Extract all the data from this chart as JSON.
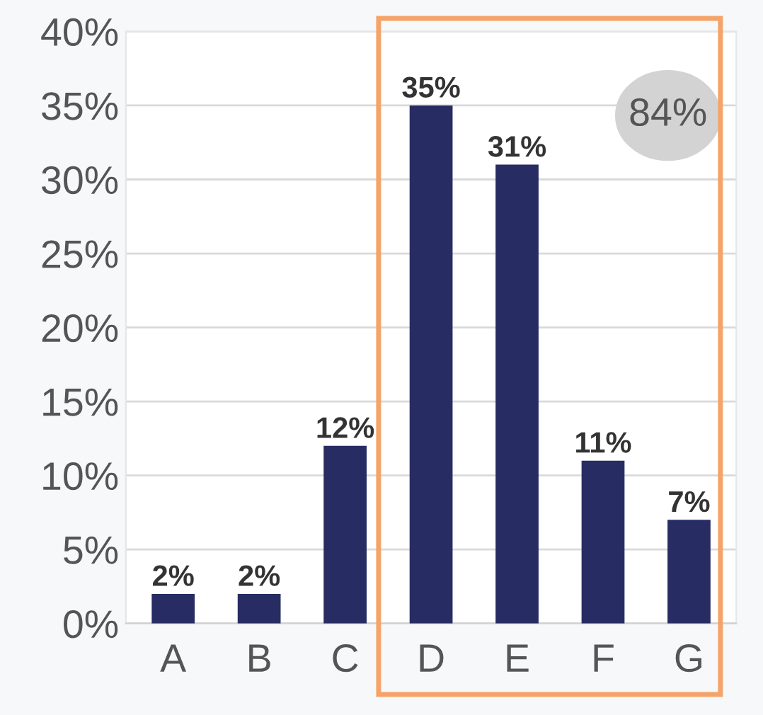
{
  "chart_data": {
    "type": "bar",
    "categories": [
      "A",
      "B",
      "C",
      "D",
      "E",
      "F",
      "G"
    ],
    "values": [
      2,
      2,
      12,
      35,
      31,
      11,
      7
    ],
    "value_labels": [
      "2%",
      "2%",
      "12%",
      "35%",
      "31%",
      "11%",
      "7%"
    ],
    "color": "#272c63",
    "ylim": [
      0,
      40
    ],
    "yticks": [
      {
        "value": 0,
        "label": "0%"
      },
      {
        "value": 5,
        "label": "5%"
      },
      {
        "value": 10,
        "label": "10%"
      },
      {
        "value": 15,
        "label": "15%"
      },
      {
        "value": 20,
        "label": "20%"
      },
      {
        "value": 25,
        "label": "25%"
      },
      {
        "value": 30,
        "label": "30%"
      },
      {
        "value": 35,
        "label": "35%"
      },
      {
        "value": 40,
        "label": "40%"
      }
    ],
    "grid": "y",
    "annotations": [
      "84%"
    ]
  }
}
